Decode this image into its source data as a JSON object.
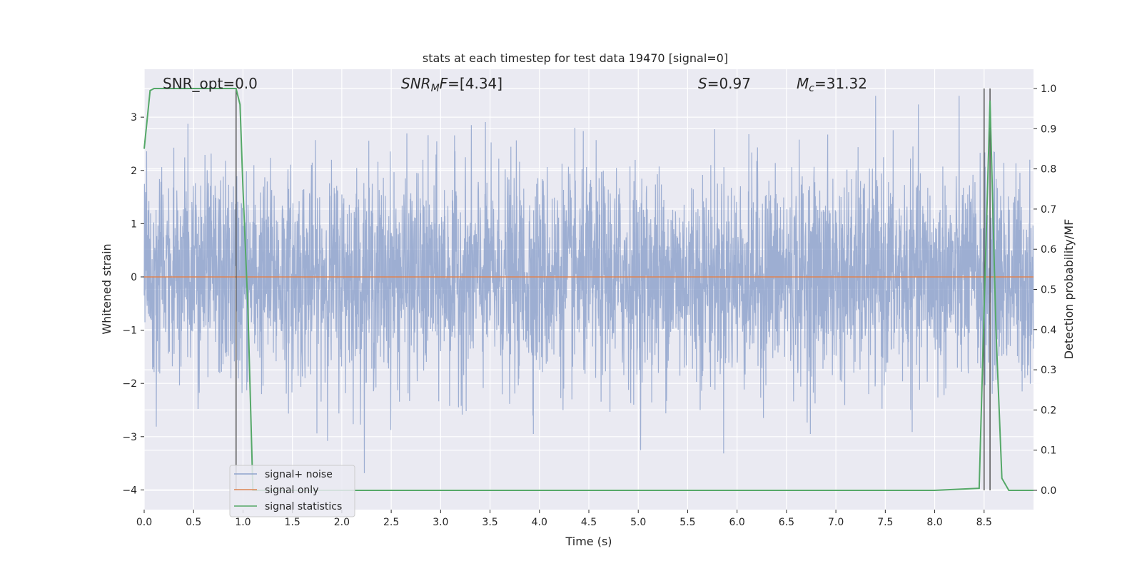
{
  "chart_data": {
    "type": "line",
    "title": "stats at each timestep for test data 19470 [signal=0]",
    "xlabel": "Time (s)",
    "ylabel_left": "Whitened strain",
    "ylabel_right": "Detection probability/MF",
    "xlim": [
      0.0,
      9.0
    ],
    "ylim_left": [
      -4.37,
      3.9
    ],
    "ylim_right": [
      -0.048,
      1.048
    ],
    "x_ticks": [
      "0.0",
      "0.5",
      "1.0",
      "1.5",
      "2.0",
      "2.5",
      "3.0",
      "3.5",
      "4.0",
      "4.5",
      "5.0",
      "5.5",
      "6.0",
      "6.5",
      "7.0",
      "7.5",
      "8.0",
      "8.5"
    ],
    "y_left_ticks": [
      "3",
      "2",
      "1",
      "0",
      "−1",
      "−2",
      "−3",
      "−4"
    ],
    "y_right_ticks": [
      "1.0",
      "0.9",
      "0.8",
      "0.7",
      "0.6",
      "0.5",
      "0.4",
      "0.3",
      "0.2",
      "0.1",
      "0.0"
    ],
    "grid": true,
    "legend_position": "lower-left",
    "annotations": {
      "snr_opt": "SNR_opt=0.0",
      "snr_mf_value": "=[4.34]",
      "s_value": "=0.97",
      "mc_value": "=31.32"
    },
    "series": [
      {
        "name": "signal+ noise",
        "color": "#8fa3cc",
        "axis": "left",
        "description_values": "whitened noise, amplitude approx within [-4, 3.4], sampled densely over 0-9 s"
      },
      {
        "name": "signal only",
        "color": "#dd8452",
        "axis": "left",
        "x": [
          0.0,
          9.0
        ],
        "y": [
          0.0,
          0.0
        ]
      },
      {
        "name": "signal statistics",
        "color": "#55a868",
        "axis": "right",
        "x": [
          0.0,
          0.06,
          0.1,
          0.2,
          0.3,
          0.5,
          0.7,
          0.85,
          0.93,
          0.97,
          1.0,
          1.05,
          1.1,
          1.2,
          2.0,
          4.0,
          6.0,
          8.0,
          8.45,
          8.5,
          8.56,
          8.62,
          8.68,
          8.75,
          8.8,
          9.0
        ],
        "y": [
          0.85,
          0.995,
          1.0,
          1.0,
          1.0,
          1.0,
          1.0,
          1.0,
          1.0,
          0.96,
          0.75,
          0.45,
          0.0,
          0.0,
          0.0,
          0.0,
          0.0,
          0.0,
          0.005,
          0.45,
          0.97,
          0.4,
          0.03,
          0.0,
          0.0,
          0.0
        ]
      }
    ],
    "vertical_lines": [
      0.93,
      8.5,
      8.56
    ],
    "noise_seed": 19470
  }
}
